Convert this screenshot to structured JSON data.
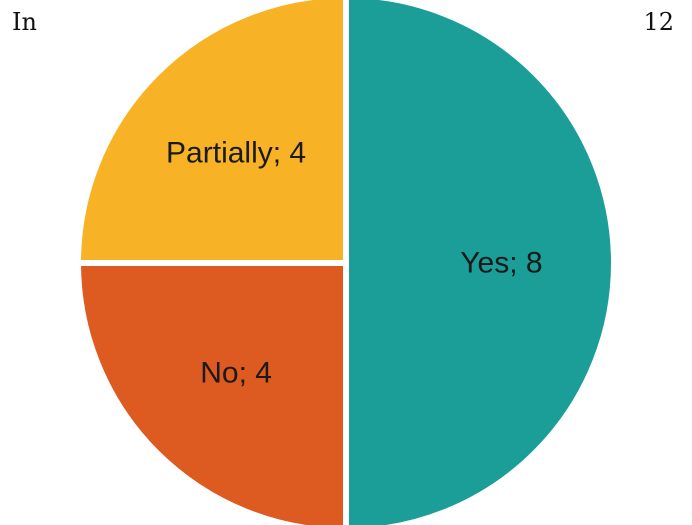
{
  "header": {
    "left_text": "In",
    "right_text": "12"
  },
  "chart_data": {
    "type": "pie",
    "slices": [
      {
        "label": "Yes; 8",
        "category": "Yes",
        "value": 8,
        "color": "#1a9e97"
      },
      {
        "label": "No; 4",
        "category": "No",
        "value": 4,
        "color": "#dd5a21"
      },
      {
        "label": "Partially; 4",
        "category": "Partially",
        "value": 4,
        "color": "#f8b226"
      }
    ],
    "start": "top",
    "direction": "clockwise",
    "data_labels": "inside",
    "legend": "none"
  }
}
